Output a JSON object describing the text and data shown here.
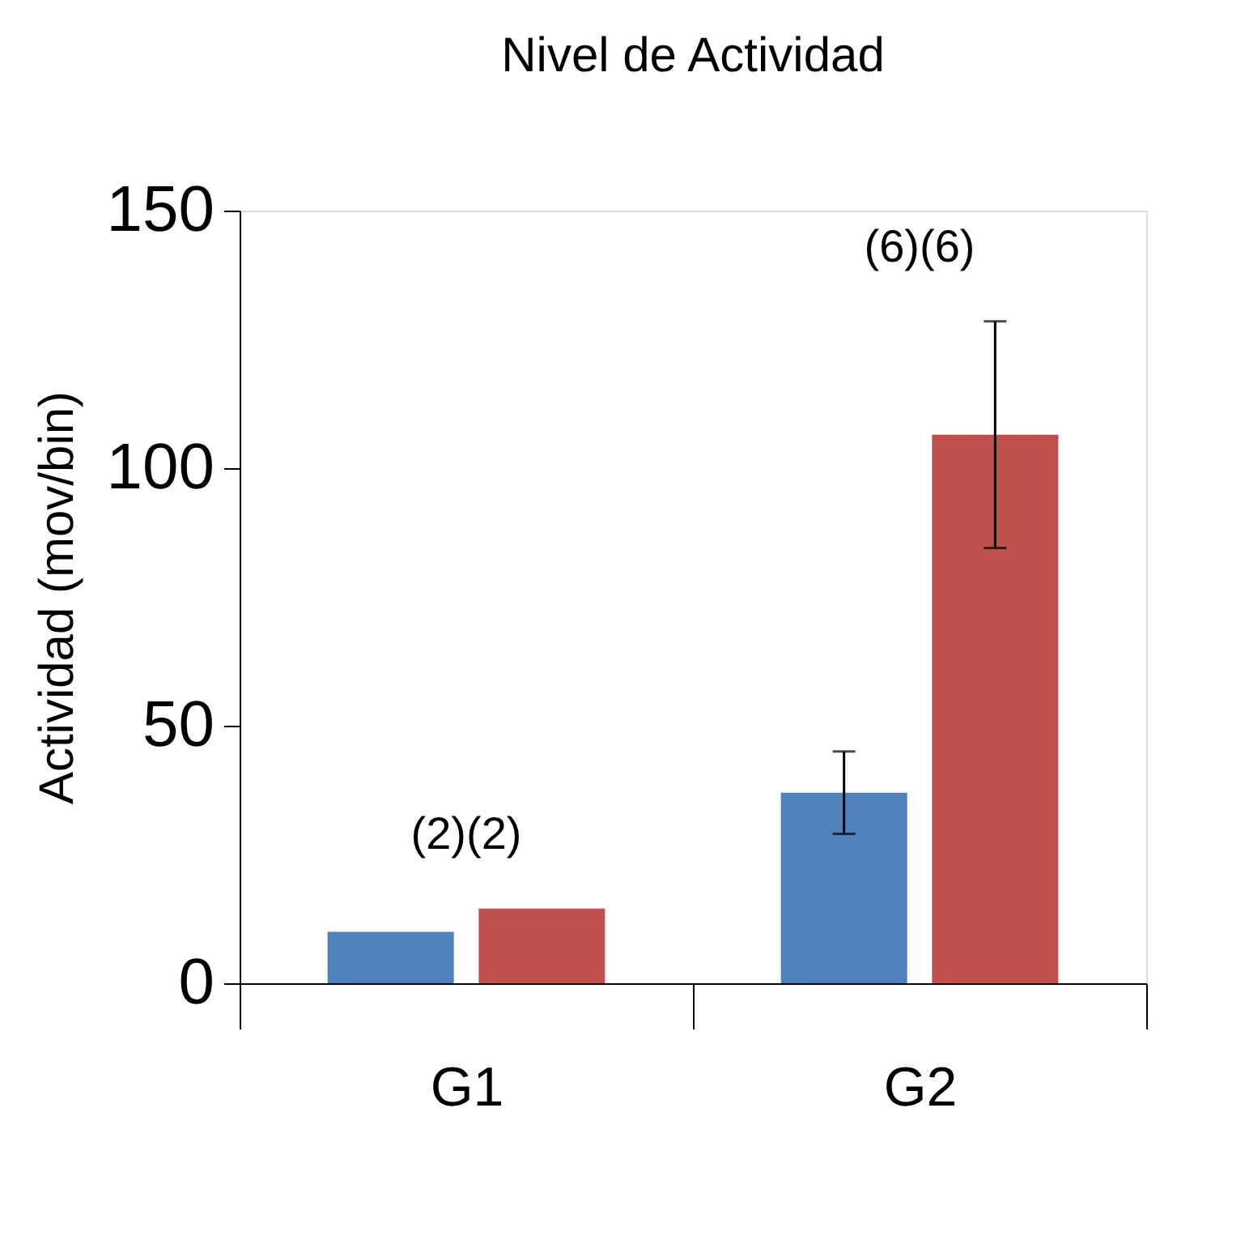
{
  "chart_data": {
    "type": "bar",
    "title": "Nivel de Actividad",
    "ylabel": "Actividad (mov/bin)",
    "categories": [
      "G1",
      "G2"
    ],
    "series": [
      {
        "color": "#4f81bd",
        "values": [
          10,
          37
        ],
        "errors": [
          null,
          8
        ]
      },
      {
        "color": "#c0504d",
        "values": [
          14.5,
          106.5
        ],
        "errors": [
          null,
          22
        ]
      }
    ],
    "ylim": [
      0,
      150
    ],
    "yticks": [
      0,
      50,
      100,
      150
    ],
    "grid": false,
    "legend": false,
    "annotations": [
      "(2)(2)",
      "(6)(6)"
    ]
  }
}
